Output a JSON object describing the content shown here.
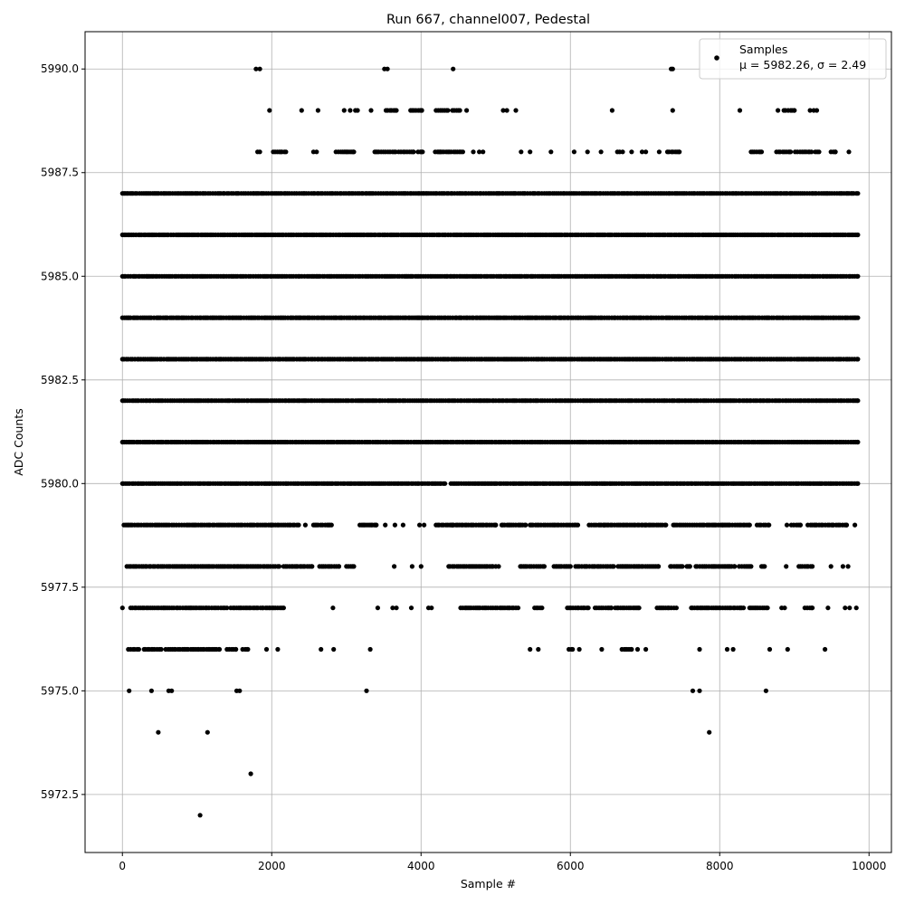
{
  "chart_data": {
    "type": "scatter",
    "title": "Run 667, channel007, Pedestal",
    "xlabel": "Sample #",
    "ylabel": "ADC Counts",
    "xlim": [
      -500,
      10300
    ],
    "ylim": [
      5971.1,
      5990.9
    ],
    "xticks": [
      0,
      2000,
      4000,
      6000,
      8000,
      10000
    ],
    "xtick_labels": [
      "0",
      "2000",
      "4000",
      "6000",
      "8000",
      "10000"
    ],
    "yticks": [
      5972.5,
      5975.0,
      5977.5,
      5980.0,
      5982.5,
      5985.0,
      5987.5,
      5990.0
    ],
    "ytick_labels": [
      "5972.5",
      "5975.0",
      "5977.5",
      "5980.0",
      "5982.5",
      "5985.0",
      "5987.5",
      "5990.0"
    ],
    "grid": true,
    "legend": {
      "position": "top-right",
      "entries": [
        {
          "name": "Samples",
          "line2": "μ = 5982.26, σ = 2.49",
          "color": "#000000",
          "marker": "dot"
        }
      ]
    },
    "series": [
      {
        "name": "Samples",
        "color": "#000000",
        "x_range": [
          0,
          9850
        ],
        "level_spans": [
          {
            "y": 5972,
            "x": [
              1040
            ]
          },
          {
            "y": 5973,
            "x": [
              1720
            ]
          },
          {
            "y": 5974,
            "x": [
              480,
              1140,
              7860
            ]
          },
          {
            "y": 5975,
            "x": [
              90,
              390,
              620,
              660,
              1530,
              1570,
              3270,
              7640,
              7730,
              8620
            ]
          },
          {
            "y": 5976,
            "x": [
              [
                80,
                220
              ],
              [
                290,
                520
              ],
              [
                580,
                1020
              ],
              [
                1050,
                1300
              ],
              [
                1400,
                1520
              ],
              [
                1610,
                1680
              ],
              1930,
              2080,
              2660,
              2830,
              3320,
              5460,
              5570,
              [
                5980,
                6030
              ],
              6120,
              6420,
              [
                6690,
                6820
              ],
              6900,
              7010,
              7730,
              8100,
              8180,
              8670,
              8910,
              9410
            ]
          },
          {
            "y": 5977,
            "x": [
              0,
              [
                110,
                1400
              ],
              [
                1450,
                1880
              ],
              [
                1920,
                2160
              ],
              2820,
              3420,
              3620,
              3670,
              3870,
              4100,
              4140,
              [
                4530,
                5300
              ],
              [
                5520,
                5620
              ],
              [
                5960,
                6240
              ],
              [
                6330,
                6550
              ],
              [
                6600,
                6920
              ],
              [
                7160,
                7420
              ],
              [
                7620,
                8320
              ],
              [
                8400,
                8640
              ],
              8830,
              8870,
              [
                9140,
                9240
              ],
              9450,
              9680,
              9740,
              9830
            ]
          },
          {
            "y": 5978,
            "x": [
              [
                60,
                2100
              ],
              [
                2160,
                2540
              ],
              [
                2640,
                2900
              ],
              [
                3000,
                3100
              ],
              3640,
              3880,
              4000,
              [
                4370,
                4960
              ],
              5000,
              5040,
              [
                5330,
                5650
              ],
              [
                5780,
                6000
              ],
              [
                6070,
                6580
              ],
              [
                6640,
                7180
              ],
              [
                7340,
                7500
              ],
              [
                7560,
                7600
              ],
              [
                7680,
                8200
              ],
              [
                8260,
                8420
              ],
              [
                8560,
                8600
              ],
              8890,
              [
                9060,
                9240
              ],
              9490,
              9650,
              9720
            ]
          },
          {
            "y": 5979,
            "x": [
              [
                20,
                2000
              ],
              [
                2020,
                2360
              ],
              2450,
              [
                2560,
                2800
              ],
              [
                3180,
                3400
              ],
              3520,
              3650,
              3760,
              3980,
              4040,
              [
                4200,
                4420
              ],
              [
                4420,
                5000
              ],
              [
                5080,
                5400
              ],
              [
                5460,
                6100
              ],
              [
                6250,
                6450
              ],
              [
                6450,
                7000
              ],
              [
                7000,
                7280
              ],
              [
                7380,
                8040
              ],
              [
                8060,
                8400
              ],
              [
                8500,
                8660
              ],
              8900,
              [
                8960,
                9080
              ],
              [
                9180,
                9520
              ],
              [
                9560,
                9700
              ],
              9810
            ]
          },
          {
            "y": 5980,
            "x": [
              [
                0,
                4320
              ],
              [
                4400,
                9850
              ]
            ]
          },
          {
            "y": 5981,
            "x": [
              [
                0,
                9850
              ]
            ]
          },
          {
            "y": 5982,
            "x": [
              [
                0,
                9850
              ]
            ]
          },
          {
            "y": 5983,
            "x": [
              [
                0,
                9850
              ]
            ]
          },
          {
            "y": 5984,
            "x": [
              [
                0,
                9850
              ]
            ]
          },
          {
            "y": 5985,
            "x": [
              [
                0,
                9850
              ]
            ]
          },
          {
            "y": 5986,
            "x": [
              [
                0,
                9850
              ]
            ]
          },
          {
            "y": 5987,
            "x": [
              [
                0,
                9850
              ]
            ]
          },
          {
            "y": 5988,
            "x": [
              1810,
              1840,
              [
                2020,
                2190
              ],
              2560,
              2600,
              [
                2860,
                3100
              ],
              [
                3380,
                3660
              ],
              [
                3700,
                3900
              ],
              [
                3960,
                4020
              ],
              [
                4190,
                4260
              ],
              [
                4280,
                4560
              ],
              4700,
              4780,
              4830,
              5340,
              5460,
              5740,
              6050,
              6230,
              6410,
              6630,
              6660,
              6700,
              6820,
              6960,
              7010,
              7190,
              [
                7300,
                7460
              ],
              [
                8420,
                8560
              ],
              [
                8760,
                8950
              ],
              [
                9010,
                9230
              ],
              [
                9280,
                9330
              ],
              [
                9490,
                9550
              ],
              9730
            ]
          },
          {
            "y": 5989,
            "x": [
              1970,
              2400,
              2620,
              2970,
              3050,
              3120,
              3150,
              3330,
              [
                3530,
                3670
              ],
              [
                3860,
                4010
              ],
              [
                4200,
                4360
              ],
              [
                4420,
                4520
              ],
              4610,
              5100,
              5150,
              5270,
              6560,
              7370,
              8270,
              8780,
              [
                8860,
                9000
              ],
              9210,
              9260,
              9300
            ]
          },
          {
            "y": 5990,
            "x": [
              1790,
              1840,
              3510,
              3550,
              4430,
              7350,
              7370
            ]
          }
        ]
      }
    ]
  }
}
